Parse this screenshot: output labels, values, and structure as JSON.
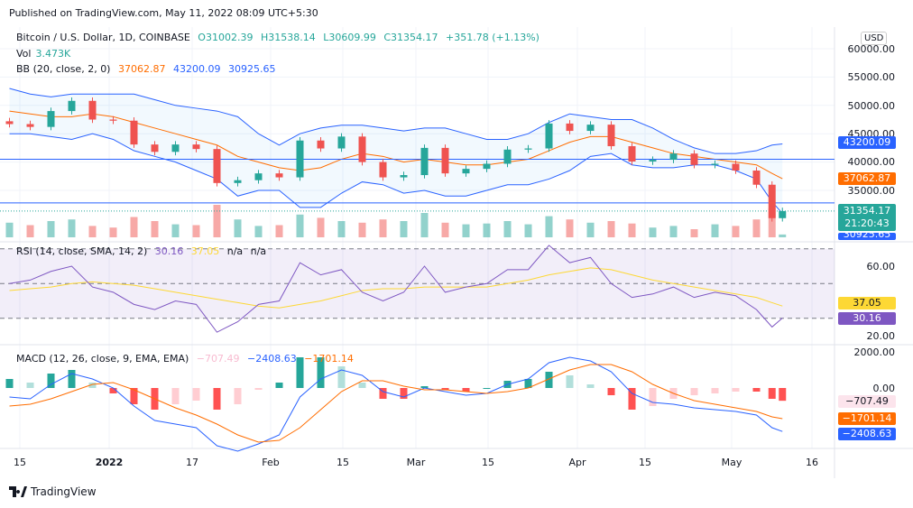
{
  "header": {
    "published": "Published on TradingView.com, May 11, 2022 08:09 UTC+5:30"
  },
  "legend": {
    "symbol": "Bitcoin / U.S. Dollar, 1D, COINBASE",
    "open": "O31002.39",
    "high": "H31538.14",
    "low": "L30609.99",
    "close": "C31354.17",
    "change": "+351.78 (+1.13%)",
    "vol_label": "Vol",
    "vol_value": "3.473K",
    "bb_label": "BB (20, close, 2, 0)",
    "bb_basis": "37062.87",
    "bb_upper": "43200.09",
    "bb_lower": "30925.65",
    "rsi_label": "RSI (14, close, SMA, 14, 2)",
    "rsi_value": "30.16",
    "rsi_sma": "37.05",
    "rsi_na1": "n/a",
    "rsi_na2": "n/a",
    "macd_label": "MACD (12, 26, close, 9, EMA, EMA)",
    "macd_hist": "−707.49",
    "macd_value": "−2408.63",
    "macd_signal": "−1701.14"
  },
  "currency": "USD",
  "price_axis": [
    "60000.00",
    "55000.00",
    "50000.00",
    "45000.00",
    "40000.00",
    "35000.00"
  ],
  "rsi_axis": [
    "60.00",
    "20.00"
  ],
  "macd_axis": [
    "2000.00",
    "0.00"
  ],
  "price_tags": {
    "bb_upper": "43200.09",
    "bb_basis": "37062.87",
    "last": "31354.17",
    "countdown": "21:20:43",
    "bb_lower": "30925.65"
  },
  "rsi_tags": {
    "sma": "37.05",
    "rsi": "30.16"
  },
  "macd_tags": {
    "hist": "−707.49",
    "signal": "−1701.14",
    "macd": "−2408.63"
  },
  "time_axis": [
    "15",
    "2022",
    "17",
    "Feb",
    "15",
    "Mar",
    "15",
    "Apr",
    "15",
    "May",
    "16"
  ],
  "footer": {
    "brand": "TradingView"
  },
  "colors": {
    "up": "#26a69a",
    "down": "#ef5350",
    "bb_basis": "#ff6d00",
    "bb_band": "#2962ff",
    "rsi": "#7e57c2",
    "rsi_sma": "#fdd835",
    "macd": "#2962ff",
    "signal": "#ff6d00"
  },
  "chart_data": {
    "type": "candlestick",
    "dates": [
      "2021-12-13",
      "2021-12-17",
      "2021-12-21",
      "2021-12-25",
      "2021-12-29",
      "2022-01-02",
      "2022-01-06",
      "2022-01-10",
      "2022-01-14",
      "2022-01-18",
      "2022-01-22",
      "2022-01-26",
      "2022-01-30",
      "2022-02-03",
      "2022-02-07",
      "2022-02-11",
      "2022-02-15",
      "2022-02-19",
      "2022-02-23",
      "2022-02-27",
      "2022-03-03",
      "2022-03-07",
      "2022-03-11",
      "2022-03-15",
      "2022-03-19",
      "2022-03-23",
      "2022-03-27",
      "2022-03-31",
      "2022-04-04",
      "2022-04-08",
      "2022-04-12",
      "2022-04-16",
      "2022-04-20",
      "2022-04-24",
      "2022-04-28",
      "2022-05-02",
      "2022-05-06",
      "2022-05-09",
      "2022-05-11"
    ],
    "close": [
      46700,
      46200,
      49000,
      50800,
      47500,
      47300,
      43100,
      41800,
      43100,
      42300,
      36300,
      36800,
      38000,
      37300,
      43800,
      42400,
      44500,
      40000,
      37300,
      37700,
      42500,
      38000,
      38800,
      39700,
      42200,
      42400,
      46800,
      45500,
      46600,
      42800,
      40100,
      40400,
      41500,
      39500,
      39700,
      38500,
      36000,
      30100,
      31354.17
    ],
    "volume_k": [
      18,
      15,
      20,
      22,
      14,
      12,
      25,
      20,
      16,
      15,
      40,
      22,
      14,
      15,
      28,
      24,
      20,
      18,
      22,
      20,
      30,
      18,
      16,
      17,
      20,
      16,
      26,
      22,
      18,
      20,
      17,
      12,
      14,
      10,
      16,
      14,
      22,
      36,
      3.473
    ],
    "bb_basis": [
      49000,
      48500,
      48000,
      48000,
      48500,
      48000,
      47000,
      46000,
      45000,
      44000,
      43000,
      41000,
      40000,
      39000,
      38500,
      39000,
      40500,
      41500,
      41000,
      40000,
      40500,
      40000,
      39500,
      39500,
      40000,
      40500,
      42000,
      43500,
      44500,
      44500,
      43500,
      42500,
      41500,
      41000,
      40500,
      40000,
      39500,
      38000,
      37062.87
    ],
    "bb_upper": [
      53000,
      52000,
      51500,
      52000,
      52000,
      52000,
      52000,
      51000,
      50000,
      49500,
      49000,
      48000,
      45000,
      43000,
      45000,
      46000,
      46500,
      46500,
      46000,
      45500,
      46000,
      46000,
      45000,
      44000,
      44000,
      45000,
      47000,
      48500,
      48000,
      47500,
      47500,
      46000,
      44000,
      42500,
      41500,
      41500,
      42000,
      43000,
      43200.09
    ],
    "bb_lower": [
      45000,
      45000,
      44500,
      44000,
      45000,
      44000,
      42000,
      41000,
      40000,
      38500,
      37000,
      34000,
      35000,
      35000,
      32000,
      32000,
      34500,
      36500,
      36000,
      34500,
      35000,
      34000,
      34000,
      35000,
      36000,
      36000,
      37000,
      38500,
      41000,
      41500,
      39500,
      39000,
      39000,
      39500,
      39500,
      38500,
      37000,
      33000,
      30925.65
    ],
    "rsi": [
      50,
      52,
      57,
      60,
      48,
      45,
      38,
      35,
      40,
      38,
      22,
      28,
      38,
      40,
      62,
      55,
      58,
      45,
      40,
      45,
      60,
      45,
      48,
      50,
      58,
      58,
      72,
      62,
      65,
      50,
      42,
      44,
      48,
      42,
      45,
      43,
      35,
      25,
      30.16
    ],
    "rsi_sma": [
      46,
      47,
      48,
      50,
      51,
      50,
      49,
      47,
      45,
      43,
      41,
      39,
      37,
      36,
      38,
      40,
      43,
      46,
      47,
      47,
      48,
      48,
      48,
      48,
      50,
      52,
      55,
      57,
      59,
      58,
      55,
      52,
      50,
      48,
      46,
      44,
      42,
      39,
      37.05
    ],
    "macd": [
      -500,
      -600,
      200,
      800,
      500,
      0,
      -1000,
      -1800,
      -2000,
      -2200,
      -3200,
      -3500,
      -3100,
      -2600,
      -500,
      500,
      1000,
      700,
      -200,
      -500,
      0,
      -200,
      -400,
      -300,
      200,
      500,
      1400,
      1700,
      1500,
      900,
      -300,
      -800,
      -900,
      -1100,
      -1200,
      -1300,
      -1500,
      -2200,
      -2408.63
    ],
    "signal": [
      -1000,
      -900,
      -600,
      -200,
      200,
      300,
      -100,
      -600,
      -1100,
      -1500,
      -2000,
      -2600,
      -3000,
      -2900,
      -2200,
      -1200,
      -200,
      400,
      400,
      100,
      -100,
      -100,
      -200,
      -300,
      -200,
      0,
      500,
      1000,
      1300,
      1300,
      900,
      200,
      -300,
      -700,
      -900,
      -1100,
      -1300,
      -1600,
      -1701.14
    ],
    "horizontal_lines": [
      40500,
      32800
    ],
    "price_range": [
      29500,
      62000
    ],
    "rsi_levels": [
      70,
      50,
      30
    ],
    "grid": true
  }
}
